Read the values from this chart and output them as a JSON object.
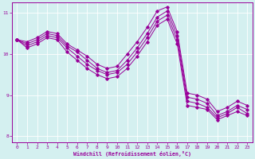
{
  "xlabel": "Windchill (Refroidissement éolien,°C)",
  "background_color": "#d4f0f0",
  "line_color": "#990099",
  "xlim": [
    -0.5,
    23.5
  ],
  "ylim": [
    7.85,
    11.25
  ],
  "yticks": [
    8,
    9,
    10,
    11
  ],
  "xticks": [
    0,
    1,
    2,
    3,
    4,
    5,
    6,
    7,
    8,
    9,
    10,
    11,
    12,
    13,
    14,
    15,
    16,
    17,
    18,
    19,
    20,
    21,
    22,
    23
  ],
  "series": [
    [
      10.35,
      10.3,
      10.4,
      10.55,
      10.5,
      10.25,
      10.1,
      9.95,
      9.75,
      9.65,
      9.7,
      10.0,
      10.3,
      10.65,
      11.05,
      11.15,
      10.55,
      9.05,
      9.0,
      8.9,
      8.6,
      8.7,
      8.85,
      8.75
    ],
    [
      10.35,
      10.25,
      10.35,
      10.5,
      10.45,
      10.2,
      10.05,
      9.85,
      9.65,
      9.55,
      9.6,
      9.85,
      10.15,
      10.5,
      10.9,
      11.05,
      10.45,
      8.95,
      8.9,
      8.8,
      8.5,
      8.6,
      8.75,
      8.65
    ],
    [
      10.35,
      10.2,
      10.3,
      10.45,
      10.4,
      10.15,
      9.95,
      9.75,
      9.6,
      9.5,
      9.55,
      9.75,
      10.05,
      10.4,
      10.8,
      10.95,
      10.35,
      8.85,
      8.8,
      8.7,
      8.45,
      8.55,
      8.7,
      8.55
    ],
    [
      10.35,
      10.15,
      10.25,
      10.4,
      10.35,
      10.05,
      9.85,
      9.65,
      9.5,
      9.4,
      9.45,
      9.65,
      9.95,
      10.3,
      10.7,
      10.85,
      10.25,
      8.75,
      8.7,
      8.65,
      8.4,
      8.5,
      8.6,
      8.5
    ]
  ]
}
